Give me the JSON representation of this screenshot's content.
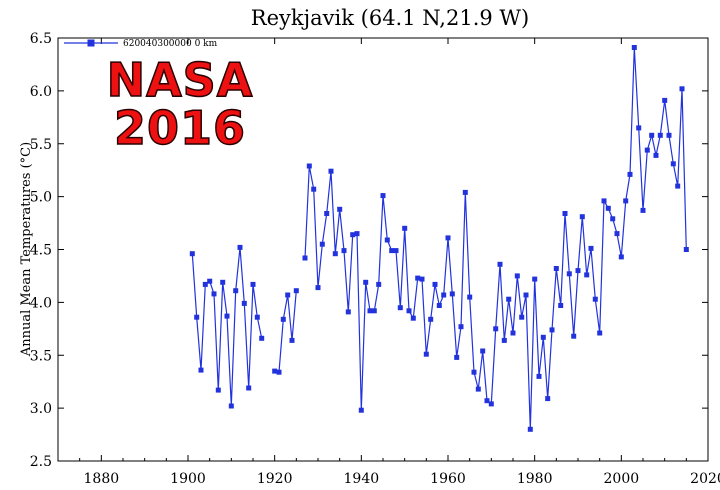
{
  "chart_data": {
    "type": "line",
    "title": "Reykjavik (64.1 N,21.9 W)",
    "ylabel": "Annual Mean Temperatures (°C)",
    "xlabel": "",
    "xlim": [
      1870,
      2020
    ],
    "ylim": [
      2.5,
      6.5
    ],
    "x_ticks": [
      "1880",
      "1900",
      "1920",
      "1940",
      "1960",
      "1980",
      "2000",
      "2020"
    ],
    "y_ticks": [
      "2.5",
      "3.0",
      "3.5",
      "4.0",
      "4.5",
      "5.0",
      "5.5",
      "6.0",
      "6.5"
    ],
    "legend_position": "top-left",
    "grid": false,
    "series": [
      {
        "name": "620040300000 0 km",
        "color": "#2233dd",
        "marker": "square",
        "segments": [
          [
            [
              1901,
              4.46
            ],
            [
              1902,
              3.86
            ],
            [
              1903,
              3.36
            ],
            [
              1904,
              4.17
            ],
            [
              1905,
              4.2
            ],
            [
              1906,
              4.08
            ],
            [
              1907,
              3.17
            ],
            [
              1908,
              4.19
            ],
            [
              1909,
              3.87
            ],
            [
              1910,
              3.02
            ],
            [
              1911,
              4.11
            ],
            [
              1912,
              4.52
            ],
            [
              1913,
              3.99
            ],
            [
              1914,
              3.19
            ],
            [
              1915,
              4.17
            ],
            [
              1916,
              3.86
            ],
            [
              1917,
              3.66
            ]
          ],
          [
            [
              1920,
              3.35
            ],
            [
              1921,
              3.34
            ],
            [
              1922,
              3.84
            ],
            [
              1923,
              4.07
            ],
            [
              1924,
              3.64
            ],
            [
              1925,
              4.11
            ]
          ],
          [
            [
              1927,
              4.42
            ],
            [
              1928,
              5.29
            ],
            [
              1929,
              5.07
            ],
            [
              1930,
              4.14
            ],
            [
              1931,
              4.55
            ],
            [
              1932,
              4.84
            ],
            [
              1933,
              5.24
            ],
            [
              1934,
              4.46
            ],
            [
              1935,
              4.88
            ],
            [
              1936,
              4.49
            ],
            [
              1937,
              3.91
            ],
            [
              1938,
              4.64
            ],
            [
              1939,
              4.65
            ],
            [
              1940,
              2.98
            ],
            [
              1941,
              4.19
            ],
            [
              1942,
              3.92
            ],
            [
              1943,
              3.92
            ],
            [
              1944,
              4.17
            ],
            [
              1945,
              5.01
            ],
            [
              1946,
              4.59
            ],
            [
              1947,
              4.49
            ],
            [
              1948,
              4.49
            ],
            [
              1949,
              3.95
            ],
            [
              1950,
              4.7
            ],
            [
              1951,
              3.92
            ],
            [
              1952,
              3.85
            ],
            [
              1953,
              4.23
            ],
            [
              1954,
              4.22
            ],
            [
              1955,
              3.51
            ],
            [
              1956,
              3.84
            ],
            [
              1957,
              4.17
            ],
            [
              1958,
              3.97
            ],
            [
              1959,
              4.07
            ],
            [
              1960,
              4.61
            ],
            [
              1961,
              4.08
            ],
            [
              1962,
              3.48
            ],
            [
              1963,
              3.77
            ],
            [
              1964,
              5.04
            ],
            [
              1965,
              4.05
            ],
            [
              1966,
              3.34
            ],
            [
              1967,
              3.18
            ],
            [
              1968,
              3.54
            ],
            [
              1969,
              3.07
            ],
            [
              1970,
              3.04
            ],
            [
              1971,
              3.75
            ],
            [
              1972,
              4.36
            ],
            [
              1973,
              3.64
            ],
            [
              1974,
              4.03
            ],
            [
              1975,
              3.71
            ],
            [
              1976,
              4.25
            ],
            [
              1977,
              3.86
            ],
            [
              1978,
              4.07
            ],
            [
              1979,
              2.8
            ],
            [
              1980,
              4.22
            ],
            [
              1981,
              3.3
            ],
            [
              1982,
              3.67
            ],
            [
              1983,
              3.09
            ],
            [
              1984,
              3.74
            ],
            [
              1985,
              4.32
            ],
            [
              1986,
              3.97
            ],
            [
              1987,
              4.84
            ],
            [
              1988,
              4.27
            ],
            [
              1989,
              3.68
            ],
            [
              1990,
              4.3
            ],
            [
              1991,
              4.81
            ],
            [
              1992,
              4.26
            ],
            [
              1993,
              4.51
            ],
            [
              1994,
              4.03
            ],
            [
              1995,
              3.71
            ],
            [
              1996,
              4.96
            ],
            [
              1997,
              4.89
            ],
            [
              1998,
              4.79
            ],
            [
              1999,
              4.65
            ],
            [
              2000,
              4.43
            ],
            [
              2001,
              4.96
            ],
            [
              2002,
              5.21
            ],
            [
              2003,
              6.41
            ],
            [
              2004,
              5.65
            ],
            [
              2005,
              4.87
            ],
            [
              2006,
              5.44
            ],
            [
              2007,
              5.58
            ],
            [
              2008,
              5.39
            ],
            [
              2009,
              5.58
            ],
            [
              2010,
              5.91
            ],
            [
              2011,
              5.58
            ],
            [
              2012,
              5.31
            ],
            [
              2013,
              5.1
            ],
            [
              2014,
              6.02
            ],
            [
              2015,
              4.5
            ]
          ]
        ]
      }
    ]
  },
  "stamp": {
    "line1": "NASA",
    "line2": "2016"
  }
}
